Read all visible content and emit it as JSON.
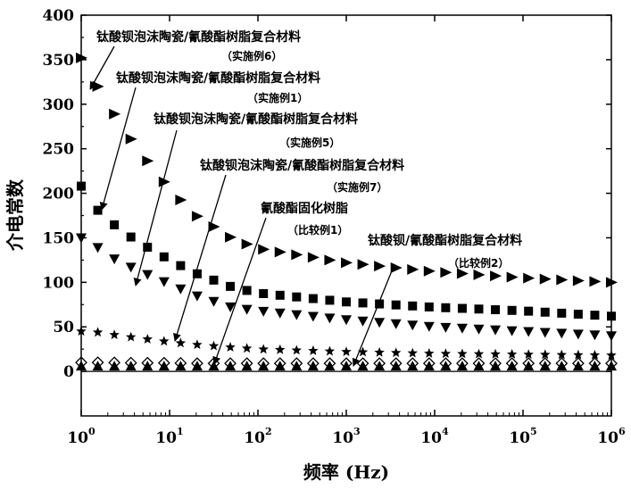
{
  "chart_data": {
    "type": "scatter",
    "title": "",
    "xlabel": "频率 (Hz)",
    "ylabel": "介电常数",
    "xscale": "log",
    "xlim": [
      1,
      1000000
    ],
    "ylim": [
      -50,
      400
    ],
    "x_ticks": [
      1,
      10,
      100,
      1000,
      10000,
      100000,
      1000000
    ],
    "x_tick_labels": [
      {
        "base": "10",
        "exp": "0"
      },
      {
        "base": "10",
        "exp": "1"
      },
      {
        "base": "10",
        "exp": "2"
      },
      {
        "base": "10",
        "exp": "3"
      },
      {
        "base": "10",
        "exp": "4"
      },
      {
        "base": "10",
        "exp": "5"
      },
      {
        "base": "10",
        "exp": "6"
      }
    ],
    "y_ticks": [
      0,
      50,
      100,
      150,
      200,
      250,
      300,
      350,
      400
    ],
    "y_tick_labels": [
      "0",
      "50",
      "100",
      "150",
      "200",
      "250",
      "300",
      "350",
      "400"
    ],
    "grid": false,
    "series": [
      {
        "marker": "triangle-right",
        "x": [
          1,
          1.5,
          2,
          4,
          10,
          20,
          50,
          100,
          1000,
          10000,
          100000,
          1000000
        ],
        "y": [
          352,
          322,
          300,
          255,
          205,
          175,
          150,
          138,
          122,
          112,
          105,
          100
        ]
      },
      {
        "marker": "square",
        "x": [
          1,
          1.5,
          2,
          4,
          10,
          20,
          50,
          100,
          1000,
          10000,
          100000,
          1000000
        ],
        "y": [
          208,
          182,
          170,
          148,
          125,
          110,
          95,
          88,
          78,
          72,
          68,
          62
        ]
      },
      {
        "marker": "triangle-down",
        "x": [
          1,
          1.5,
          2,
          4,
          10,
          20,
          50,
          100,
          1000,
          10000,
          100000,
          1000000
        ],
        "y": [
          150,
          140,
          130,
          115,
          98,
          85,
          72,
          68,
          58,
          50,
          45,
          40
        ]
      },
      {
        "marker": "star",
        "x": [
          1,
          1.5,
          2,
          4,
          10,
          20,
          50,
          100,
          1000,
          10000,
          100000,
          1000000
        ],
        "y": [
          45,
          44,
          42,
          38,
          33,
          30,
          27,
          25,
          22,
          20,
          19,
          18
        ]
      },
      {
        "marker": "diamond",
        "x": [
          1,
          1.5,
          2,
          4,
          10,
          20,
          50,
          100,
          1000,
          10000,
          100000,
          1000000
        ],
        "y": [
          10,
          10,
          10,
          9.5,
          9.5,
          9,
          9,
          9,
          9,
          9,
          9,
          9
        ]
      },
      {
        "marker": "triangle-up",
        "x": [
          1,
          1.5,
          2,
          4,
          10,
          20,
          50,
          100,
          1000,
          10000,
          100000,
          1000000
        ],
        "y": [
          6,
          6,
          6,
          6,
          6,
          6,
          6,
          6,
          6,
          6,
          6,
          6
        ]
      }
    ],
    "annotations": [
      {
        "text": "钛酸钡泡沫陶瓷/氰酸酯树脂复合材料",
        "sub": "（实施例6）"
      },
      {
        "text": "钛酸钡泡沫陶瓷/氰酸酯树脂复合材料",
        "sub": "（实施例1）"
      },
      {
        "text": "钛酸钡泡沫陶瓷/氰酸酯树脂复合材料",
        "sub": "（实施例5）"
      },
      {
        "text": "钛酸钡泡沫陶瓷/氰酸酯树脂复合材料",
        "sub": "（实施例7）"
      },
      {
        "text": "氰酸酯固化树脂",
        "sub": "（比较例1）"
      },
      {
        "text": "钛酸钡/氰酸酯树脂复合材料",
        "sub": "（比较例2）"
      }
    ]
  }
}
